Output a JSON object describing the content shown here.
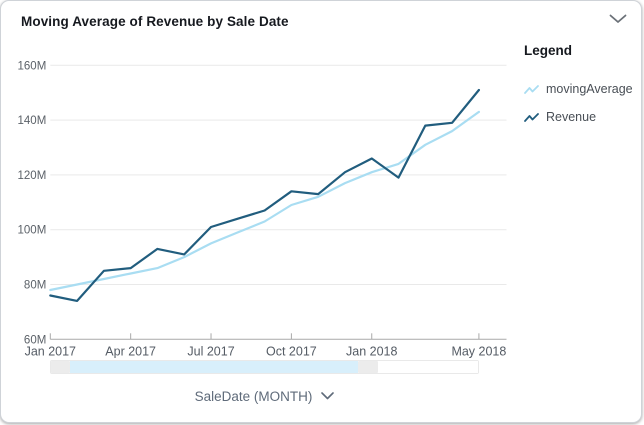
{
  "header": {
    "title": "Moving Average of Revenue by Sale Date"
  },
  "legend": {
    "title": "Legend",
    "items": [
      {
        "label": "movingAverage",
        "color": "#a9ddf2"
      },
      {
        "label": "Revenue",
        "color": "#215d7e"
      }
    ]
  },
  "chart_data": {
    "type": "line",
    "title": "Moving Average of Revenue by Sale Date",
    "x": [
      "Jan 2017",
      "Feb 2017",
      "Mar 2017",
      "Apr 2017",
      "May 2017",
      "Jun 2017",
      "Jul 2017",
      "Aug 2017",
      "Sep 2017",
      "Oct 2017",
      "Nov 2017",
      "Dec 2017",
      "Jan 2018",
      "Feb 2018",
      "Mar 2018",
      "Apr 2018",
      "May 2018"
    ],
    "series": [
      {
        "name": "movingAverage",
        "color": "#a9ddf2",
        "values": [
          78,
          80,
          82,
          84,
          86,
          90,
          95,
          99,
          103,
          109,
          112,
          117,
          121,
          124,
          131,
          136,
          143
        ]
      },
      {
        "name": "Revenue",
        "color": "#215d7e",
        "values": [
          76,
          74,
          85,
          86,
          93,
          91,
          101,
          104,
          107,
          114,
          113,
          121,
          126,
          119,
          138,
          139,
          151
        ]
      }
    ],
    "unit": "M",
    "ylim": [
      60,
      160
    ],
    "y_ticks": [
      {
        "label": "160M",
        "value": 160
      },
      {
        "label": "140M",
        "value": 140
      },
      {
        "label": "120M",
        "value": 120
      },
      {
        "label": "100M",
        "value": 100
      },
      {
        "label": "80M",
        "value": 80
      },
      {
        "label": "60M",
        "value": 60
      }
    ],
    "x_ticks": [
      {
        "label": "Jan 2017",
        "month_index": 0
      },
      {
        "label": "Apr 2017",
        "month_index": 3
      },
      {
        "label": "Jul 2017",
        "month_index": 6
      },
      {
        "label": "Oct 2017",
        "month_index": 9
      },
      {
        "label": "Jan 2018",
        "month_index": 12
      },
      {
        "label": "May 2018",
        "month_index": 16
      }
    ],
    "xlabel": "SaleDate (MONTH)",
    "ylabel": "",
    "grid": "horizontal",
    "legend_position": "right"
  },
  "x_axis_control": {
    "label": "SaleDate (MONTH)"
  },
  "colors": {
    "grid": "#e9e9e9",
    "axis": "#a9a9a9",
    "tick_label": "#5b6168",
    "chevron": "#6b7178",
    "scrollbar_selection": "#d8effb",
    "scrollbar_handle": "#ececec"
  }
}
